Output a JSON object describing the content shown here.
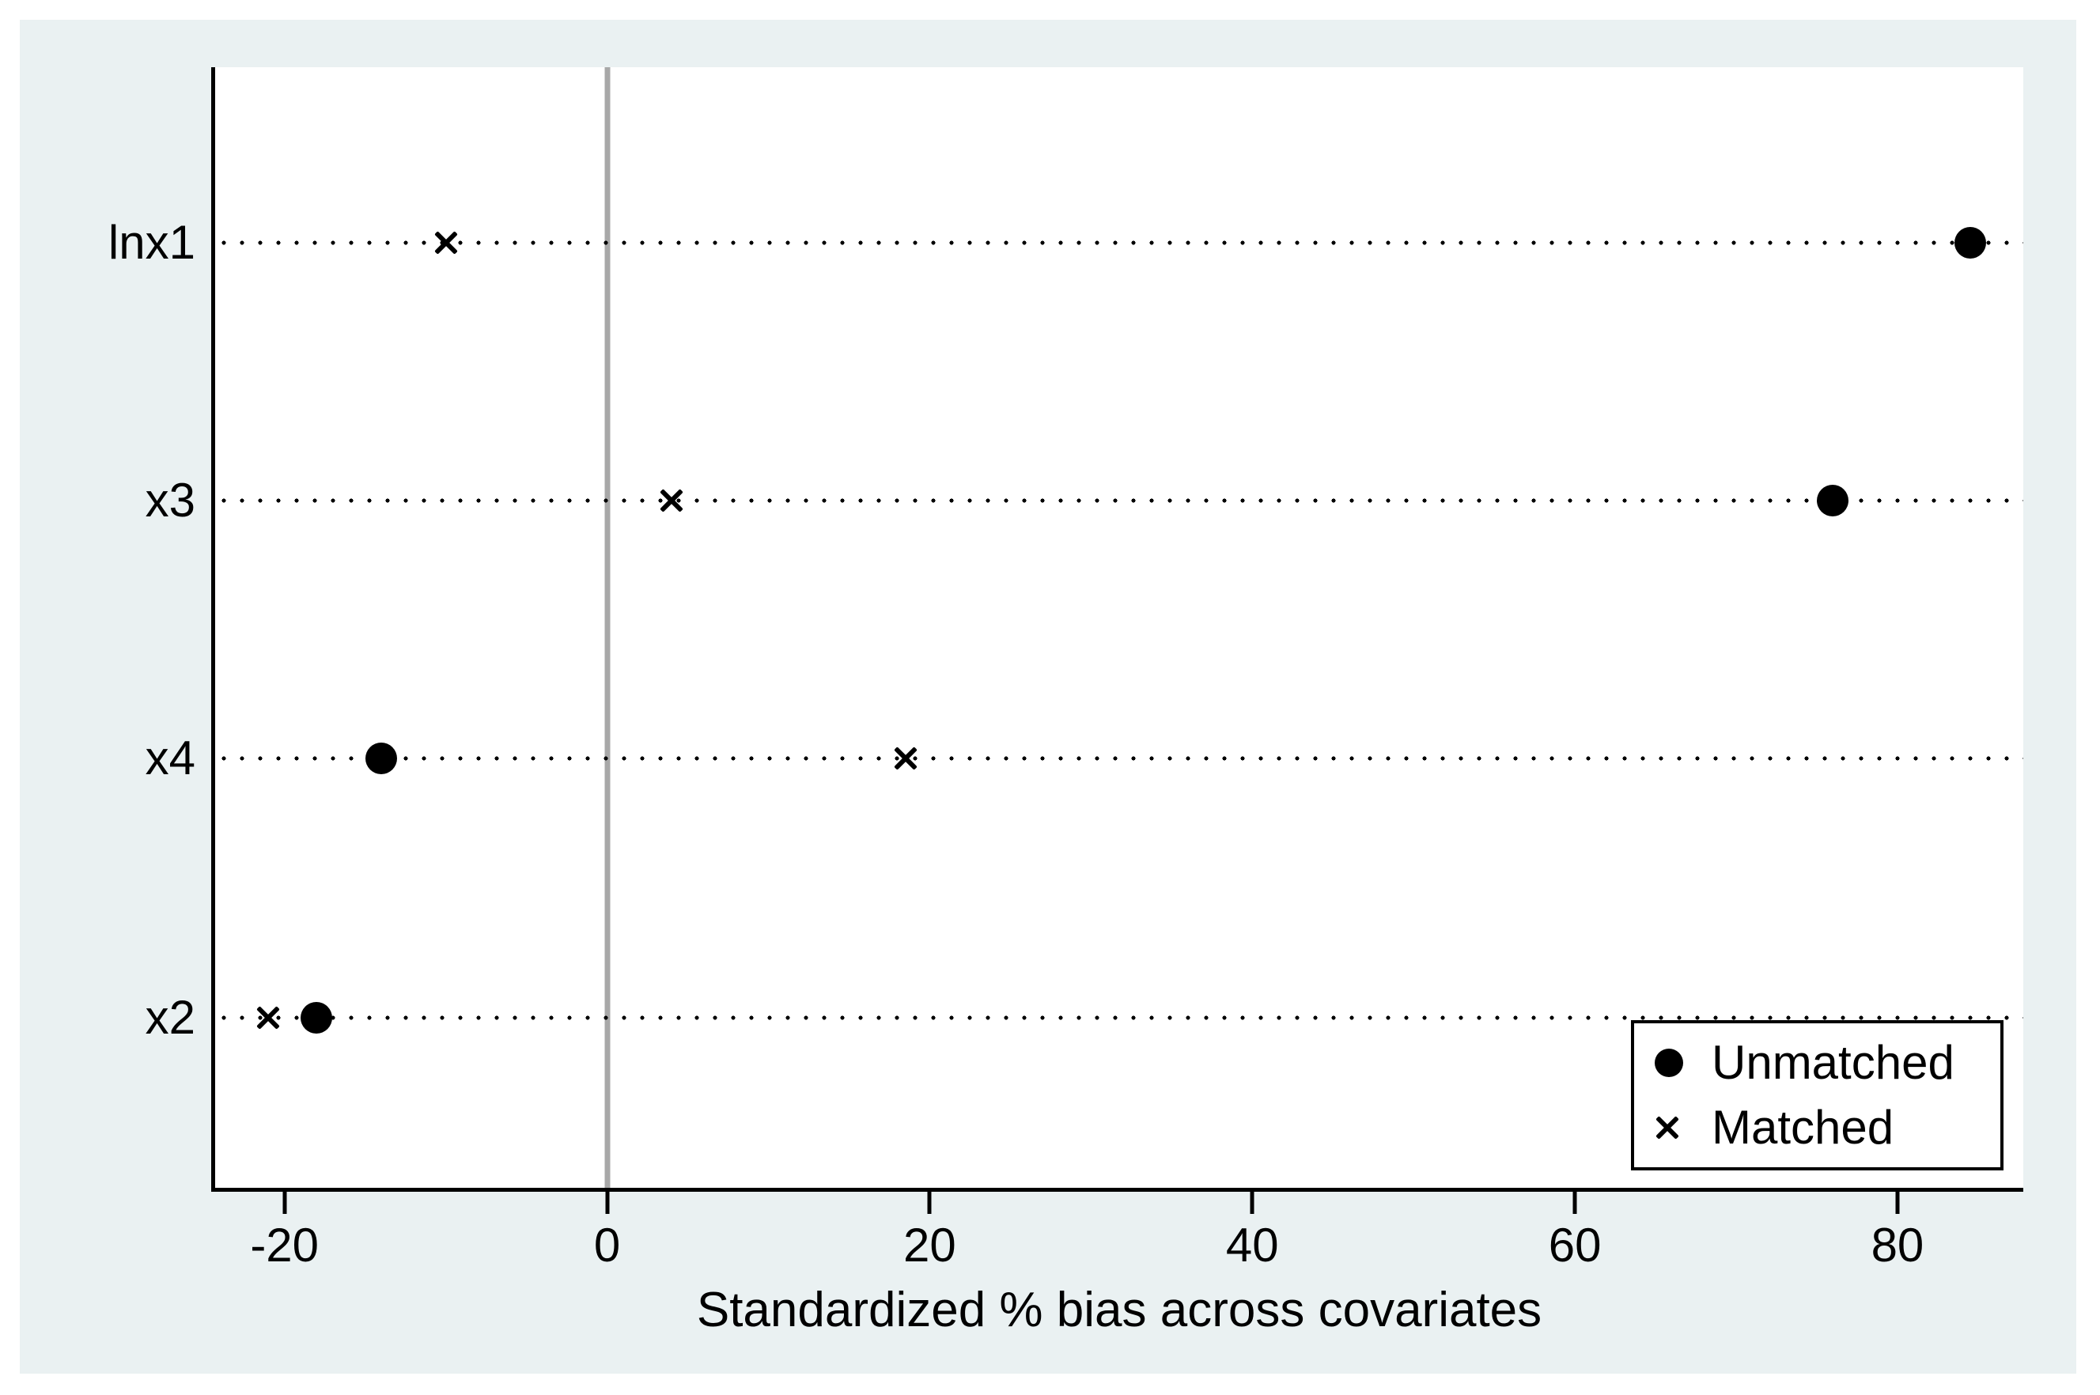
{
  "chart_data": {
    "type": "scatter",
    "subtype": "horizontal-dot-plot (covariate balance plot)",
    "title": "",
    "xlabel": "Standardized % bias across covariates",
    "ylabel": "",
    "categories": [
      "lnx1",
      "x3",
      "x4",
      "x2"
    ],
    "series": [
      {
        "name": "Unmatched",
        "marker": "filled-circle",
        "values": [
          84.5,
          76,
          -14,
          -18
        ]
      },
      {
        "name": "Matched",
        "marker": "x-cross",
        "values": [
          -10,
          4,
          18.5,
          -21
        ]
      }
    ],
    "x_ticks": [
      -20,
      0,
      20,
      40,
      60,
      80
    ],
    "x_tick_labels": [
      "-20",
      "0",
      "20",
      "40",
      "60",
      "80"
    ],
    "xlim": [
      -24.3,
      87.8
    ],
    "zero_reference_line": 0,
    "grid": "dotted horizontal guide line per category",
    "legend_position": "bottom-right inside plot"
  },
  "colors": {
    "page_background": "#ffffff",
    "graph_background": "#eaf1f2",
    "plot_background": "#ffffff",
    "axis_color": "#000000",
    "marker_color": "#000000",
    "zero_line_color": "#a8a8a8"
  }
}
